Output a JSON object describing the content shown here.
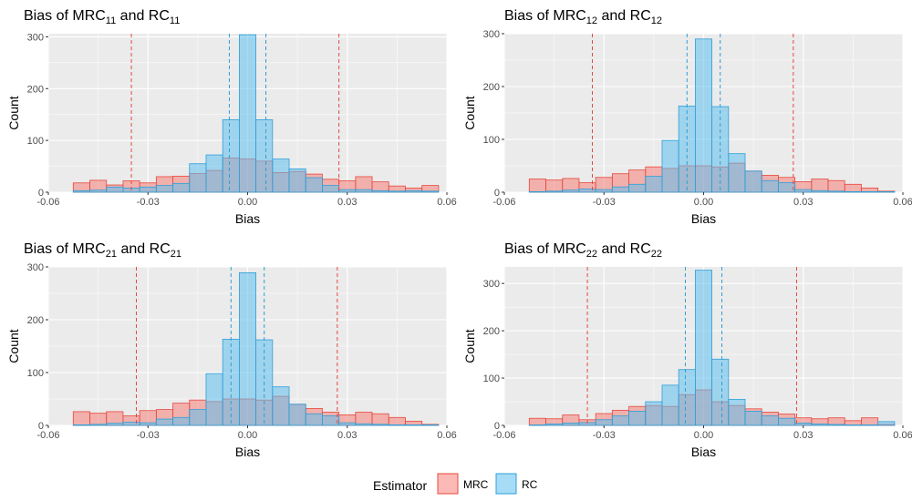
{
  "colors": {
    "panel_bg": "#ebebeb",
    "grid": "#ffffff",
    "mrc_fill": "#f8766d",
    "mrc_line": "#e8483d",
    "rc_fill": "#5ebfee",
    "rc_line": "#2e9fd8"
  },
  "legend": {
    "title": "Estimator",
    "items": [
      {
        "label": "MRC",
        "key": "mrc"
      },
      {
        "label": "RC",
        "key": "rc"
      }
    ]
  },
  "chart_data": [
    {
      "type": "bar",
      "title": {
        "prefix": "Bias of MRC",
        "sub1": "11",
        "mid": " and RC",
        "sub2": "11"
      },
      "xlabel": "Bias",
      "ylabel": "Count",
      "xlim": [
        -0.06,
        0.06
      ],
      "ylim": [
        0,
        306
      ],
      "xticks": [
        -0.06,
        -0.03,
        0.0,
        0.03,
        0.06
      ],
      "xtick_labels": [
        "-0.06",
        "-0.03",
        "0.00",
        "0.03",
        "0.06"
      ],
      "yticks": [
        0,
        100,
        200,
        300
      ],
      "ytick_labels": [
        "0",
        "100",
        "200",
        "300"
      ],
      "bin_width": 0.005,
      "bin_start": -0.0525,
      "series": [
        {
          "name": "MRC",
          "key": "mrc",
          "values": [
            18,
            23,
            14,
            22,
            18,
            30,
            31,
            36,
            42,
            66,
            64,
            60,
            38,
            40,
            35,
            25,
            22,
            30,
            20,
            12,
            8,
            13
          ]
        },
        {
          "name": "RC",
          "key": "rc",
          "values": [
            3,
            4,
            10,
            8,
            10,
            13,
            17,
            55,
            72,
            140,
            304,
            140,
            64,
            45,
            28,
            13,
            5,
            5,
            3,
            2,
            3,
            2
          ]
        }
      ],
      "vlines": [
        {
          "series": "mrc",
          "x": -0.035
        },
        {
          "series": "mrc",
          "x": 0.0275
        },
        {
          "series": "rc",
          "x": -0.0055
        },
        {
          "series": "rc",
          "x": 0.0055
        }
      ]
    },
    {
      "type": "bar",
      "title": {
        "prefix": "Bias of MRC",
        "sub1": "12",
        "mid": " and RC",
        "sub2": "12"
      },
      "xlabel": "Bias",
      "ylabel": "Count",
      "xlim": [
        -0.06,
        0.06
      ],
      "ylim": [
        0,
        300
      ],
      "xticks": [
        -0.06,
        -0.03,
        0.0,
        0.03,
        0.06
      ],
      "xtick_labels": [
        "-0.06",
        "-0.03",
        "0.00",
        "0.03",
        "0.06"
      ],
      "yticks": [
        0,
        100,
        200,
        300
      ],
      "ytick_labels": [
        "0",
        "100",
        "200",
        "300"
      ],
      "bin_width": 0.005,
      "bin_start": -0.0525,
      "series": [
        {
          "name": "MRC",
          "key": "mrc",
          "values": [
            25,
            23,
            26,
            18,
            28,
            35,
            42,
            48,
            45,
            50,
            50,
            48,
            55,
            40,
            32,
            28,
            20,
            25,
            22,
            15,
            8,
            2
          ]
        },
        {
          "name": "RC",
          "key": "rc",
          "values": [
            1,
            2,
            4,
            6,
            5,
            10,
            15,
            30,
            98,
            163,
            290,
            162,
            73,
            40,
            22,
            18,
            5,
            3,
            2,
            1,
            1,
            1
          ]
        }
      ],
      "vlines": [
        {
          "series": "mrc",
          "x": -0.0335
        },
        {
          "series": "mrc",
          "x": 0.027
        },
        {
          "series": "rc",
          "x": -0.005
        },
        {
          "series": "rc",
          "x": 0.005
        }
      ]
    },
    {
      "type": "bar",
      "title": {
        "prefix": "Bias of MRC",
        "sub1": "21",
        "mid": " and RC",
        "sub2": "21"
      },
      "xlabel": "Bias",
      "ylabel": "Count",
      "xlim": [
        -0.06,
        0.06
      ],
      "ylim": [
        0,
        300
      ],
      "xticks": [
        -0.06,
        -0.03,
        0.0,
        0.03,
        0.06
      ],
      "xtick_labels": [
        "-0.06",
        "-0.03",
        "0.00",
        "0.03",
        "0.06"
      ],
      "yticks": [
        0,
        100,
        200,
        300
      ],
      "ytick_labels": [
        "0",
        "100",
        "200",
        "300"
      ],
      "bin_width": 0.005,
      "bin_start": -0.0525,
      "series": [
        {
          "name": "MRC",
          "key": "mrc",
          "values": [
            26,
            23,
            26,
            18,
            28,
            30,
            42,
            48,
            45,
            50,
            50,
            48,
            55,
            40,
            32,
            25,
            20,
            25,
            22,
            15,
            8,
            2
          ]
        },
        {
          "name": "RC",
          "key": "rc",
          "values": [
            1,
            2,
            4,
            6,
            5,
            12,
            15,
            30,
            98,
            163,
            289,
            162,
            73,
            40,
            22,
            18,
            5,
            3,
            2,
            1,
            1,
            1
          ]
        }
      ],
      "vlines": [
        {
          "series": "mrc",
          "x": -0.0335
        },
        {
          "series": "mrc",
          "x": 0.027
        },
        {
          "series": "rc",
          "x": -0.005
        },
        {
          "series": "rc",
          "x": 0.005
        }
      ]
    },
    {
      "type": "bar",
      "title": {
        "prefix": "Bias of MRC",
        "sub1": "22",
        "mid": " and RC",
        "sub2": "22"
      },
      "xlabel": "Bias",
      "ylabel": "Count",
      "xlim": [
        -0.06,
        0.06
      ],
      "ylim": [
        0,
        335
      ],
      "xticks": [
        -0.06,
        -0.03,
        0.0,
        0.03,
        0.06
      ],
      "xtick_labels": [
        "-0.06",
        "-0.03",
        "0.00",
        "0.03",
        "0.06"
      ],
      "yticks": [
        0,
        100,
        200,
        300
      ],
      "ytick_labels": [
        "0",
        "100",
        "200",
        "300"
      ],
      "bin_width": 0.005,
      "bin_start": -0.0525,
      "series": [
        {
          "name": "MRC",
          "key": "mrc",
          "values": [
            15,
            14,
            22,
            12,
            25,
            32,
            40,
            42,
            40,
            65,
            75,
            50,
            42,
            35,
            28,
            24,
            16,
            14,
            16,
            10,
            16,
            2
          ]
        },
        {
          "name": "RC",
          "key": "rc",
          "values": [
            1,
            3,
            5,
            6,
            12,
            20,
            30,
            50,
            85,
            118,
            328,
            140,
            55,
            30,
            20,
            15,
            5,
            3,
            2,
            1,
            1,
            8
          ]
        }
      ],
      "vlines": [
        {
          "series": "mrc",
          "x": -0.035
        },
        {
          "series": "mrc",
          "x": 0.028
        },
        {
          "series": "rc",
          "x": -0.0055
        },
        {
          "series": "rc",
          "x": 0.0055
        }
      ]
    }
  ]
}
